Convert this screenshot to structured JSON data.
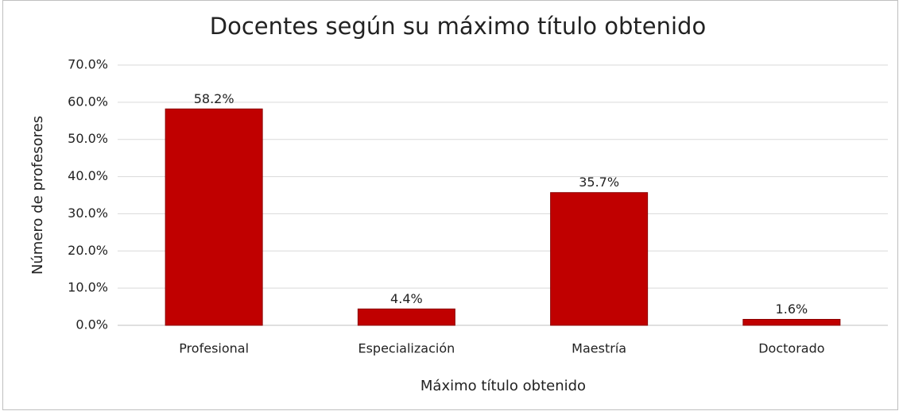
{
  "chart_data": {
    "type": "bar",
    "title": "Docentes según su máximo título obtenido",
    "x_label": "Máximo título obtenido",
    "y_label": "Número de profesores",
    "categories": [
      "Profesional",
      "Especialización",
      "Maestría",
      "Doctorado"
    ],
    "values": [
      58.2,
      4.4,
      35.7,
      1.6
    ],
    "value_labels": [
      "58.2%",
      "4.4%",
      "35.7%",
      "1.6%"
    ],
    "color": "#c00000",
    "ylim": [
      0,
      70
    ],
    "yticks": [
      {
        "value": 0,
        "label": "0.0%"
      },
      {
        "value": 10,
        "label": "10.0%"
      },
      {
        "value": 20,
        "label": "20.0%"
      },
      {
        "value": 30,
        "label": "30.0%"
      },
      {
        "value": 40,
        "label": "40.0%"
      },
      {
        "value": 50,
        "label": "50.0%"
      },
      {
        "value": 60,
        "label": "60.0%"
      },
      {
        "value": 70,
        "label": "70.0%"
      }
    ],
    "grid": true
  }
}
